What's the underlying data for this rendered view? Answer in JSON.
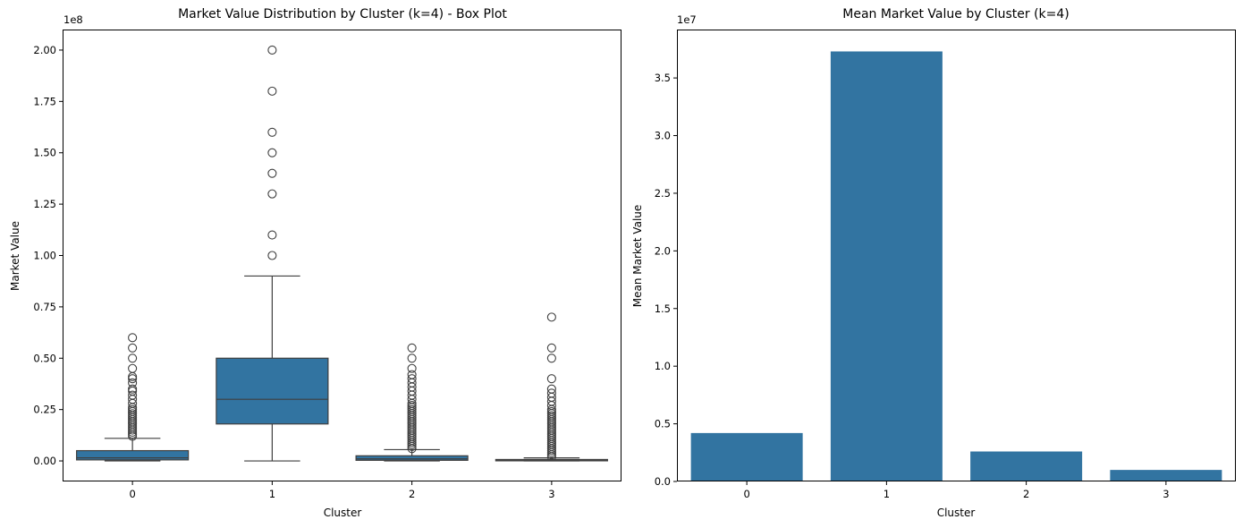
{
  "chart_data": [
    {
      "type": "box",
      "title": "Market Value Distribution by Cluster (k=4) - Box Plot",
      "xlabel": "Cluster",
      "ylabel": "Market Value",
      "y_scale_label": "1e8",
      "ylim": [
        -10000000,
        210000000
      ],
      "yticks": [
        0,
        25000000,
        50000000,
        75000000,
        100000000,
        125000000,
        150000000,
        175000000,
        200000000
      ],
      "ytick_labels": [
        "0.00",
        "0.25",
        "0.50",
        "0.75",
        "1.00",
        "1.25",
        "1.50",
        "1.75",
        "2.00"
      ],
      "categories": [
        "0",
        "1",
        "2",
        "3"
      ],
      "color": "#3274a1",
      "boxes": [
        {
          "category": "0",
          "whislo": 0,
          "q1": 500000,
          "med": 1500000,
          "q3": 5000000,
          "whishi": 11000000,
          "outliers": [
            12000000,
            13000000,
            14000000,
            15000000,
            16000000,
            17000000,
            18000000,
            19000000,
            20000000,
            21000000,
            22000000,
            23000000,
            24000000,
            25000000,
            26000000,
            28000000,
            30000000,
            32000000,
            34000000,
            35000000,
            38000000,
            40000000,
            41000000,
            45000000,
            50000000,
            55000000,
            60000000
          ]
        },
        {
          "category": "1",
          "whislo": 0,
          "q1": 18000000,
          "med": 30000000,
          "q3": 50000000,
          "whishi": 90000000,
          "outliers": [
            100000000,
            110000000,
            130000000,
            140000000,
            150000000,
            160000000,
            180000000,
            200000000
          ]
        },
        {
          "category": "2",
          "whislo": 0,
          "q1": 300000,
          "med": 1000000,
          "q3": 2500000,
          "whishi": 5500000,
          "outliers": [
            6000000,
            7000000,
            8000000,
            9000000,
            10000000,
            11000000,
            12000000,
            13000000,
            14000000,
            15000000,
            16000000,
            17000000,
            18000000,
            19000000,
            20000000,
            21000000,
            22000000,
            23000000,
            24000000,
            25000000,
            26000000,
            27000000,
            28000000,
            30000000,
            32000000,
            34000000,
            36000000,
            38000000,
            40000000,
            42000000,
            45000000,
            50000000,
            55000000
          ]
        },
        {
          "category": "3",
          "whislo": 0,
          "q1": 100000,
          "med": 300000,
          "q3": 700000,
          "whishi": 1500000,
          "outliers": [
            2000000,
            3000000,
            4000000,
            5000000,
            6000000,
            7000000,
            8000000,
            9000000,
            10000000,
            11000000,
            12000000,
            13000000,
            14000000,
            15000000,
            16000000,
            17000000,
            18000000,
            19000000,
            20000000,
            21000000,
            22000000,
            23000000,
            24000000,
            25000000,
            27000000,
            29000000,
            31000000,
            33000000,
            35000000,
            40000000,
            50000000,
            55000000,
            70000000
          ]
        }
      ]
    },
    {
      "type": "bar",
      "title": "Mean Market Value by Cluster (k=4)",
      "xlabel": "Cluster",
      "ylabel": "Mean Market Value",
      "y_scale_label": "1e7",
      "ylim": [
        0,
        39200000
      ],
      "yticks": [
        0,
        5000000,
        10000000,
        15000000,
        20000000,
        25000000,
        30000000,
        35000000
      ],
      "ytick_labels": [
        "0.0",
        "0.5",
        "1.0",
        "1.5",
        "2.0",
        "2.5",
        "3.0",
        "3.5"
      ],
      "categories": [
        "0",
        "1",
        "2",
        "3"
      ],
      "values": [
        4200000,
        37300000,
        2600000,
        1000000
      ],
      "color": "#3274a1"
    }
  ]
}
